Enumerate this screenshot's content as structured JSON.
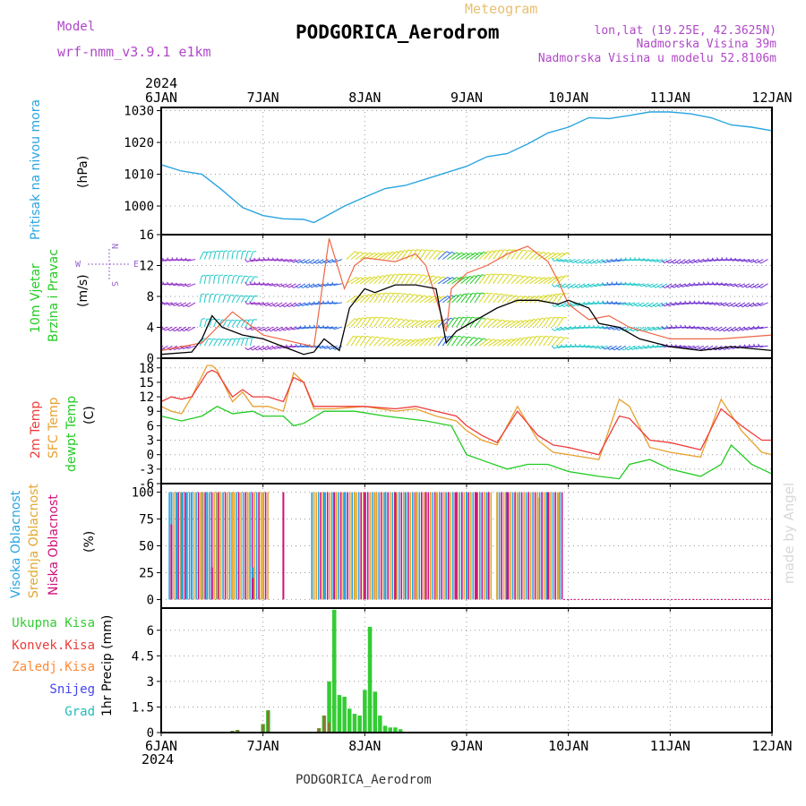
{
  "header": {
    "model_label": "Model",
    "model_name": "wrf-nmm_v3.9.1 e1km",
    "meteogram_label": "Meteogram",
    "station": "PODGORICA_Aerodrom",
    "lonlat": "lon,lat (19.25E, 42.3625N)",
    "elevation": "Nadmorska Visina 39m",
    "model_elevation": "Nadmorska Visina u modelu 52.8106m",
    "footer_station": "PODGORICA_Aerodrom",
    "credit": "made by Angel"
  },
  "colors": {
    "pressure": "#2aa4e0",
    "temp2m": "#ee3b3b",
    "sfc_temp": "#e8a030",
    "dewpoint": "#22cc22",
    "high_cloud": "#2aa4e0",
    "mid_cloud": "#e0a830",
    "low_cloud": "#d0107a",
    "total_precip": "#33cc33",
    "conv_precip": "#ee3b3b",
    "frozen_precip": "#ff8833",
    "snow": "#4444ee",
    "hail": "#22bbbb",
    "wind_label": "#22cc22",
    "compass": "#9966cc",
    "magenta_text": "#b048c8",
    "meteogram_text": "#e8c070"
  },
  "chart_data": [
    {
      "type": "line",
      "name": "pressure",
      "xlabels": [
        "6JAN",
        "7JAN",
        "8JAN",
        "9JAN",
        "10JAN",
        "11JAN",
        "12JAN"
      ],
      "year_label": "2024",
      "ylabel_left": "Pritisak na nivou mora",
      "ylabel": "(hPa)",
      "ylim": [
        991,
        1031
      ],
      "yticks": [
        1000,
        1010,
        1020,
        1030
      ],
      "grid": true,
      "series": [
        {
          "key": "mslp",
          "x": [
            0,
            0.2,
            0.4,
            0.6,
            0.8,
            1.0,
            1.2,
            1.4,
            1.5,
            1.6,
            1.8,
            2.0,
            2.2,
            2.4,
            2.6,
            2.8,
            3.0,
            3.2,
            3.4,
            3.6,
            3.8,
            4.0,
            4.2,
            4.4,
            4.6,
            4.8,
            5.0,
            5.2,
            5.4,
            5.6,
            5.8,
            6.0
          ],
          "y": [
            1013,
            1011,
            1010,
            1005,
            999.5,
            997,
            996,
            995.8,
            994.8,
            996.5,
            1000,
            1002.8,
            1005.5,
            1006.5,
            1008.5,
            1010.5,
            1012.5,
            1015.5,
            1016.5,
            1019.5,
            1023,
            1024.8,
            1027.8,
            1027.5,
            1028.5,
            1029.6,
            1029.6,
            1029,
            1027.8,
            1025.5,
            1024.8,
            1023.7
          ]
        }
      ]
    },
    {
      "type": "line",
      "name": "wind",
      "ylabel_left_1": "10m Vjetar",
      "ylabel_left_2": "Brzina i Pravac",
      "ylabel": "(m/s)",
      "compass_labels": {
        "n": "N",
        "s": "S",
        "e": "E",
        "w": "W"
      },
      "ylim": [
        0,
        16
      ],
      "yticks": [
        0,
        4,
        8,
        12,
        16
      ],
      "grid": true,
      "series": [
        {
          "key": "speed",
          "x": [
            0,
            0.3,
            0.4,
            0.5,
            0.6,
            0.8,
            1.0,
            1.2,
            1.4,
            1.5,
            1.6,
            1.75,
            1.85,
            2.0,
            2.1,
            2.3,
            2.5,
            2.7,
            2.8,
            2.9,
            3.1,
            3.3,
            3.5,
            3.7,
            3.9,
            4.0,
            4.2,
            4.3,
            4.5,
            4.7,
            5.0,
            5.3,
            5.6,
            6.0
          ],
          "y": [
            0.5,
            0.8,
            2.5,
            5.5,
            4.0,
            3.0,
            2.5,
            1.5,
            0.5,
            0.8,
            2.5,
            1.0,
            6.5,
            9.0,
            8.5,
            9.5,
            9.5,
            9.0,
            2.0,
            3.5,
            5.0,
            6.5,
            7.5,
            7.5,
            7.0,
            7.5,
            6.5,
            4.5,
            4.0,
            2.5,
            1.5,
            1.0,
            1.5,
            1.0
          ]
        },
        {
          "key": "gust",
          "x": [
            0,
            0.4,
            0.7,
            1.0,
            1.5,
            1.65,
            1.8,
            1.9,
            2.0,
            2.3,
            2.5,
            2.6,
            2.8,
            2.85,
            3.0,
            3.2,
            3.4,
            3.6,
            3.8,
            3.9,
            4.0,
            4.2,
            4.4,
            4.6,
            5.0,
            5.5,
            6.0
          ],
          "y": [
            1.0,
            2.0,
            6.0,
            3.0,
            1.5,
            15.5,
            9.0,
            12.0,
            13.0,
            12.5,
            13.5,
            12.0,
            3.5,
            9.0,
            11.0,
            12.0,
            13.5,
            14.5,
            12.5,
            10.0,
            7.0,
            5.0,
            5.5,
            4.0,
            2.5,
            2.5,
            3.0
          ]
        }
      ]
    },
    {
      "type": "line",
      "name": "temperature",
      "ylabel_left_1": "2m Temp",
      "ylabel_left_2": "SFC Temp",
      "ylabel_left_3": "dewpt Temp",
      "ylabel": "(C)",
      "ylim": [
        -6,
        20
      ],
      "yticks": [
        -6,
        -3,
        0,
        3,
        6,
        9,
        12,
        15,
        18
      ],
      "grid": true,
      "series": [
        {
          "key": "temp2m",
          "x": [
            0,
            0.1,
            0.2,
            0.3,
            0.45,
            0.5,
            0.55,
            0.7,
            0.8,
            0.9,
            1.05,
            1.2,
            1.3,
            1.4,
            1.5,
            1.7,
            2.0,
            2.3,
            2.5,
            2.7,
            2.9,
            3.0,
            3.15,
            3.3,
            3.5,
            3.7,
            3.85,
            4.0,
            4.3,
            4.5,
            4.6,
            4.8,
            5.0,
            5.3,
            5.5,
            5.7,
            5.9,
            6.0
          ],
          "y": [
            11,
            12,
            11.5,
            12,
            17,
            17.5,
            17,
            12,
            13.5,
            12,
            12,
            11,
            16,
            15,
            10,
            10,
            10,
            9.5,
            10,
            9,
            8,
            6,
            4,
            2.5,
            9,
            4,
            2,
            1.5,
            0,
            8,
            7.5,
            3,
            2.5,
            1,
            9.5,
            6,
            3,
            3
          ]
        },
        {
          "key": "sfc",
          "x": [
            0,
            0.1,
            0.2,
            0.3,
            0.45,
            0.5,
            0.55,
            0.7,
            0.8,
            0.9,
            1.05,
            1.2,
            1.3,
            1.4,
            1.5,
            1.7,
            2.0,
            2.3,
            2.5,
            2.7,
            2.9,
            3.0,
            3.15,
            3.3,
            3.5,
            3.7,
            3.85,
            4.0,
            4.3,
            4.5,
            4.6,
            4.8,
            5.0,
            5.3,
            5.5,
            5.7,
            5.9,
            6.0
          ],
          "y": [
            10,
            9,
            8.5,
            12,
            18.5,
            18.5,
            17.5,
            11,
            13,
            10,
            10,
            9,
            17,
            15,
            9.5,
            9.5,
            10,
            9,
            9.5,
            8,
            7,
            5,
            3,
            2,
            10,
            3,
            0.5,
            0,
            -1,
            11.5,
            10,
            1.5,
            0.5,
            -0.5,
            11.5,
            5,
            0.5,
            0
          ]
        },
        {
          "key": "dewpt",
          "x": [
            0,
            0.2,
            0.4,
            0.55,
            0.7,
            0.9,
            1.0,
            1.2,
            1.3,
            1.4,
            1.6,
            1.9,
            2.2,
            2.6,
            2.85,
            3.0,
            3.2,
            3.4,
            3.6,
            3.8,
            4.0,
            4.3,
            4.5,
            4.6,
            4.8,
            5.0,
            5.3,
            5.5,
            5.6,
            5.8,
            6.0
          ],
          "y": [
            8,
            7,
            8,
            10,
            8.5,
            9,
            8,
            8,
            6,
            6.5,
            9,
            9,
            8,
            7,
            6,
            0,
            -1.5,
            -3,
            -2,
            -2,
            -3.5,
            -4.5,
            -5,
            -2,
            -1,
            -3,
            -4.5,
            -2,
            2,
            -2,
            -4
          ]
        }
      ]
    },
    {
      "type": "bar",
      "name": "cloudiness",
      "ylabel_left_1": "Visoka Oblacnost",
      "ylabel_left_2": "Srednja Oblacnost",
      "ylabel_left_3": "Niska Oblacnost",
      "ylabel": "(%)",
      "ylim": [
        -8,
        108
      ],
      "yticks": [
        0,
        25,
        50,
        75,
        100
      ],
      "grid": true,
      "cloudy_periods": [
        [
          0.08,
          1.05
        ],
        [
          1.48,
          3.25
        ],
        [
          3.3,
          3.95
        ]
      ],
      "series": [
        {
          "key": "high",
          "x": [
            0.1,
            0.15,
            0.2,
            0.25,
            0.3,
            0.45,
            0.9,
            1.6,
            1.8,
            2.0,
            2.2,
            2.4,
            2.6,
            2.8,
            3.0,
            3.2
          ],
          "y": [
            100,
            100,
            100,
            100,
            100,
            100,
            30,
            100,
            100,
            100,
            100,
            100,
            100,
            100,
            100,
            100
          ]
        },
        {
          "key": "mid",
          "x": [
            0.4,
            0.55,
            0.7,
            0.85,
            1.0,
            1.5,
            1.7,
            1.9,
            2.1,
            2.3,
            2.5,
            2.7,
            2.9,
            3.1,
            3.3,
            3.5,
            3.7,
            3.9
          ],
          "y": [
            100,
            100,
            100,
            100,
            100,
            100,
            100,
            100,
            100,
            100,
            100,
            100,
            100,
            100,
            100,
            100,
            95,
            100
          ]
        },
        {
          "key": "low",
          "x": [
            0.1,
            0.5,
            0.9,
            1.2,
            1.7,
            2.0,
            2.3,
            2.6,
            2.9,
            3.1,
            3.4,
            3.8
          ],
          "y": [
            70,
            30,
            20,
            100,
            100,
            100,
            100,
            100,
            100,
            100,
            100,
            100
          ]
        }
      ]
    },
    {
      "type": "bar",
      "name": "precipitation",
      "labels": [
        "Ukupna Kisa",
        "Konvek.Kisa",
        "Zaledj.Kisa",
        "Snijeg",
        "Grad"
      ],
      "ylabel": "1hr Precip (mm)",
      "ylim": [
        0,
        7.3
      ],
      "yticks": [
        0,
        1.5,
        3,
        4.5,
        6
      ],
      "ytick_labels": [
        "0",
        "1.5",
        "3",
        "4.5",
        "6"
      ],
      "grid": true,
      "series": [
        {
          "key": "total",
          "x": [
            0.7,
            0.75,
            1.0,
            1.05,
            1.55,
            1.6,
            1.65,
            1.7,
            1.75,
            1.8,
            1.85,
            1.9,
            1.95,
            2.0,
            2.05,
            2.1,
            2.15,
            2.2,
            2.25,
            2.3,
            2.35
          ],
          "y": [
            0.1,
            0.15,
            0.5,
            1.3,
            0.25,
            1.0,
            3.0,
            7.2,
            2.2,
            2.1,
            1.4,
            1.1,
            1.0,
            2.5,
            6.2,
            2.4,
            1.0,
            0.4,
            0.3,
            0.3,
            0.2
          ]
        },
        {
          "key": "convective",
          "x": [
            0.7,
            0.75,
            1.0,
            1.05,
            1.55,
            1.6,
            1.65
          ],
          "y": [
            0.1,
            0.15,
            0.5,
            1.3,
            0.25,
            1.0,
            0.6
          ]
        }
      ]
    }
  ]
}
